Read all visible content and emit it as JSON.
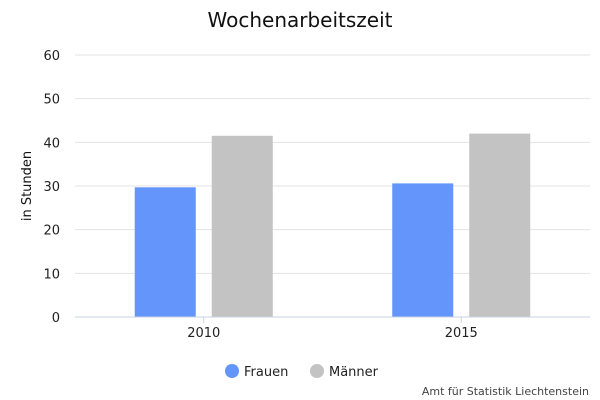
{
  "chart_data": {
    "type": "bar",
    "title": "Wochenarbeitszeit",
    "xlabel": "",
    "ylabel": "in Stunden",
    "categories": [
      "2010",
      "2015"
    ],
    "series": [
      {
        "name": "Frauen",
        "values": [
          29.7,
          30.6
        ],
        "color": "#6495fb"
      },
      {
        "name": "Männer",
        "values": [
          41.5,
          42.0
        ],
        "color": "#c3c3c3"
      }
    ],
    "ylim": [
      0,
      60
    ],
    "yticks": [
      "0",
      "10",
      "20",
      "30",
      "40",
      "50",
      "60"
    ],
    "grid": true,
    "legend_position": "bottom-center"
  },
  "source": "Amt für Statistik Liechtenstein"
}
